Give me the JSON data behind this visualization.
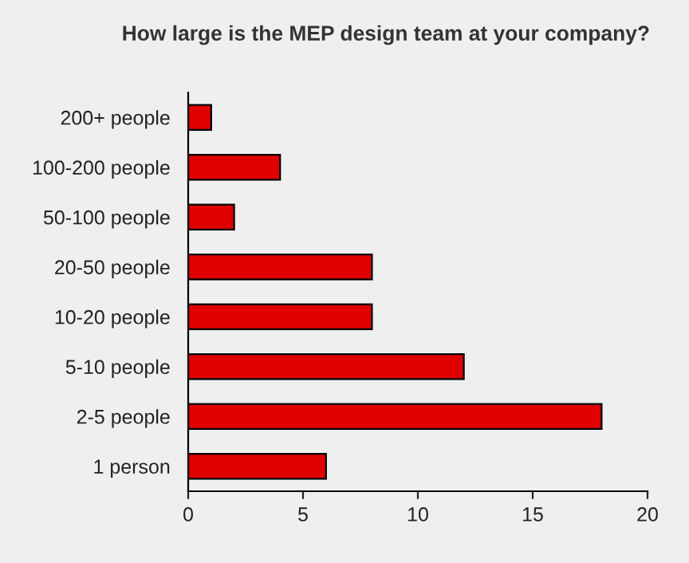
{
  "chart_data": {
    "type": "bar",
    "orientation": "horizontal",
    "title": "How large is the MEP design team at your company?",
    "categories": [
      "200+ people",
      "100-200 people",
      "50-100 people",
      "20-50 people",
      "10-20 people",
      "5-10 people",
      "2-5 people",
      "1 person"
    ],
    "values": [
      1,
      4,
      2,
      8,
      8,
      12,
      18,
      6
    ],
    "color": "#e00000",
    "xlim": [
      0,
      20
    ],
    "xticks": [
      0,
      5,
      10,
      15,
      20
    ],
    "grid": false
  }
}
